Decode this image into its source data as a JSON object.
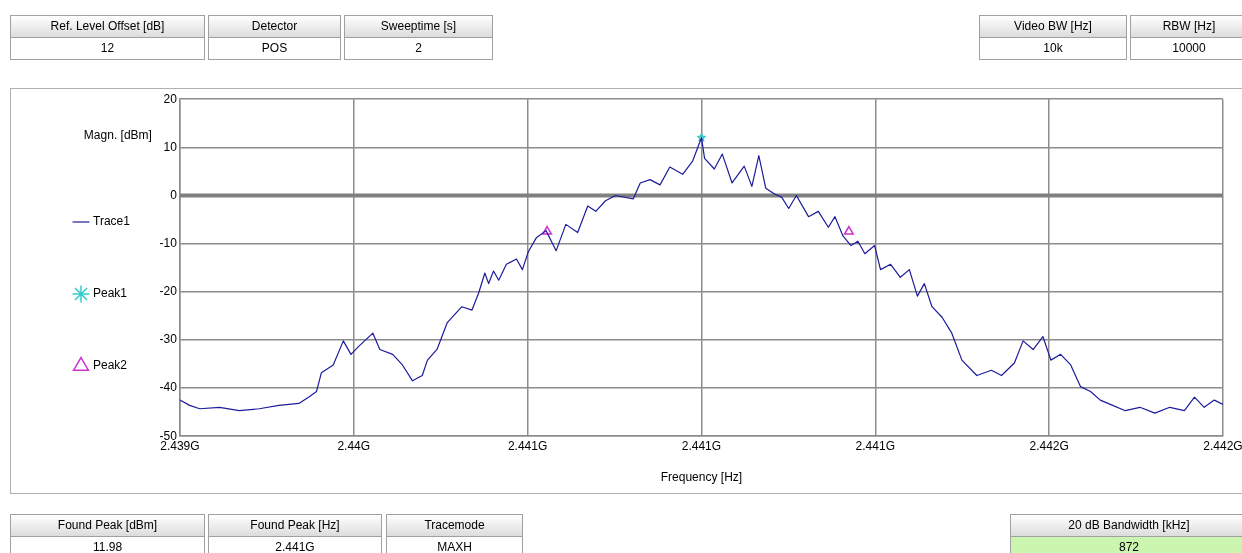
{
  "chart_data": {
    "type": "line",
    "xlabel": "Frequency [Hz]",
    "ylabel": "Magn. [dBm]",
    "xlim": [
      2.4395,
      2.4425
    ],
    "xticks": [
      {
        "value": 2.4395,
        "label": "2.439G"
      },
      {
        "value": 2.44,
        "label": "2.44G"
      },
      {
        "value": 2.4405,
        "label": "2.441G"
      },
      {
        "value": 2.441,
        "label": "2.441G"
      },
      {
        "value": 2.4415,
        "label": "2.441G"
      },
      {
        "value": 2.442,
        "label": "2.442G"
      },
      {
        "value": 2.4425,
        "label": "2.442G"
      }
    ],
    "ylim": [
      -50,
      20
    ],
    "yticks": [
      -50,
      -40,
      -30,
      -20,
      -10,
      0,
      10,
      20
    ],
    "grid": true,
    "legend": "left",
    "ref_lines": [
      {
        "axis": "y",
        "value": 0,
        "color": "#808080"
      }
    ],
    "annotations": [
      "Ref. Level Offset [dB]",
      "12",
      "Detector",
      "POS",
      "Sweeptime [s]",
      "2",
      "Video BW [Hz]",
      "10k",
      "RBW [Hz]",
      "10000",
      "Found Peak [dBm]",
      "11.98",
      "Found Peak [Hz]",
      "2.441G",
      "Tracemode",
      "MAXH",
      "20 dB Bandwidth [kHz]",
      "872"
    ],
    "series": [
      {
        "name": "Trace1",
        "color": "#1c1c9c",
        "marker": "none",
        "x": [
          2.4395,
          2.439528,
          2.439557,
          2.439614,
          2.439671,
          2.439728,
          2.439785,
          2.439842,
          2.43987,
          2.439893,
          2.439907,
          2.439941,
          2.43997,
          2.439992,
          2.440012,
          2.440055,
          2.440075,
          2.440112,
          2.44014,
          2.440169,
          2.440197,
          2.440212,
          2.44024,
          2.440269,
          2.440311,
          2.44034,
          2.44036,
          2.440377,
          2.440388,
          2.440402,
          2.440417,
          2.440439,
          2.440468,
          2.440485,
          2.440502,
          2.440525,
          2.440553,
          2.440582,
          2.44061,
          2.440644,
          2.440673,
          2.440696,
          2.440724,
          2.440753,
          2.440804,
          2.440824,
          2.440852,
          2.440881,
          2.440909,
          2.440946,
          2.440975,
          2.441,
          2.441009,
          2.441037,
          2.44106,
          2.441088,
          2.441123,
          2.441145,
          2.441165,
          2.441185,
          2.441208,
          2.441231,
          2.441251,
          2.441273,
          2.441308,
          2.441336,
          2.441365,
          2.441384,
          2.441407,
          2.44143,
          2.44145,
          2.44147,
          2.441498,
          2.441515,
          2.441544,
          2.441572,
          2.441598,
          2.441621,
          2.441641,
          2.441663,
          2.441692,
          2.44172,
          2.441749,
          2.441792,
          2.441834,
          2.441863,
          2.4419,
          2.441925,
          2.441954,
          2.441982,
          2.442005,
          2.442033,
          2.442062,
          2.44209,
          2.442119,
          2.442147,
          2.442176,
          2.442219,
          2.442261,
          2.442304,
          2.442347,
          2.442389,
          2.442418,
          2.442446,
          2.442475,
          2.4425
        ],
        "values": [
          -42.5,
          -43.6,
          -44.3,
          -44,
          -44.7,
          -44.3,
          -43.6,
          -43.2,
          -41.9,
          -40.7,
          -36.8,
          -35.2,
          -30.2,
          -33,
          -31.5,
          -28.6,
          -32,
          -33,
          -35.2,
          -38.5,
          -37.4,
          -34.2,
          -31.9,
          -26.4,
          -23.1,
          -23.8,
          -20.1,
          -16.1,
          -18.3,
          -15.7,
          -17.6,
          -14.3,
          -13.2,
          -15.4,
          -11.7,
          -8.8,
          -7.3,
          -11.5,
          -6,
          -7.7,
          -2.2,
          -3.3,
          -1.1,
          0,
          -0.7,
          2.6,
          3.3,
          2.2,
          5.9,
          4.4,
          7.2,
          12,
          7.7,
          5.5,
          8.6,
          2.6,
          6.1,
          1.9,
          8.3,
          1.5,
          0.4,
          -0.4,
          -2.7,
          0,
          -4.4,
          -3.3,
          -6.6,
          -4.4,
          -8.4,
          -10.4,
          -9.5,
          -12.1,
          -10.4,
          -15.4,
          -14.3,
          -17,
          -15.4,
          -20.9,
          -18.3,
          -23.1,
          -25.3,
          -28.6,
          -34.2,
          -37.4,
          -36.3,
          -37.4,
          -34.8,
          -30.2,
          -32,
          -29.3,
          -34.2,
          -33,
          -35.2,
          -39.7,
          -40.7,
          -42.5,
          -43.4,
          -44.7,
          -44,
          -45.2,
          -44,
          -44.7,
          -41.9,
          -44,
          -42.5,
          -43.4
        ]
      },
      {
        "name": "Peak1",
        "type": "scatter",
        "color": "#33cccc",
        "marker": "star",
        "x": [
          2.441
        ],
        "values": [
          12
        ]
      },
      {
        "name": "Peak2",
        "type": "scatter",
        "color": "#cc33cc",
        "marker": "triangle",
        "x": [
          2.440556,
          2.441424
        ],
        "values": [
          -7.5,
          -7.5
        ]
      }
    ]
  }
}
